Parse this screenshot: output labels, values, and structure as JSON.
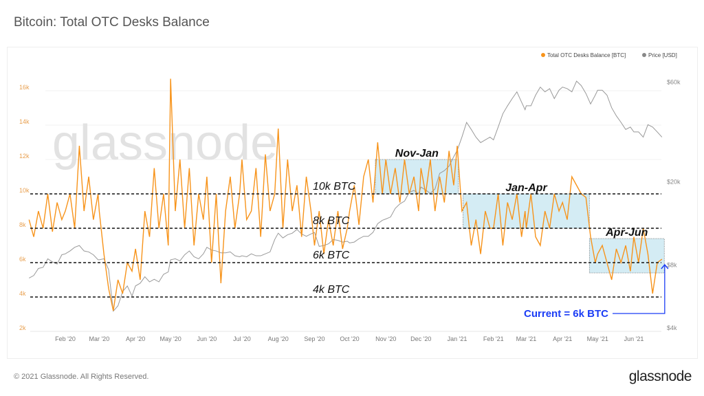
{
  "title": "Bitcoin: Total OTC Desks Balance",
  "footer": "© 2021 Glassnode. All Rights Reserved.",
  "logo": "glassnode",
  "watermark": "glassnode",
  "colors": {
    "btc": "#f7931a",
    "price": "#999999",
    "box": "#d4ecf4",
    "annotation": "#1a3cf5"
  },
  "chart_data": {
    "type": "line",
    "title": "Bitcoin: Total OTC Desks Balance",
    "legend_position": "top-right",
    "grid": true,
    "y_left": {
      "ticks": [
        "2k",
        "4k",
        "6k",
        "8k",
        "10k",
        "12k",
        "14k",
        "16k"
      ],
      "tick_values": [
        2000,
        4000,
        6000,
        8000,
        10000,
        12000,
        14000,
        16000
      ],
      "range": [
        2000,
        18000
      ]
    },
    "y_right": {
      "scale": "log",
      "ticks": [
        "$4k",
        "$8k",
        "$20k",
        "$60k"
      ],
      "tick_values": [
        4000,
        8000,
        20000,
        60000
      ]
    },
    "x_ticks": [
      [
        "2020-02-01",
        "Feb '20"
      ],
      [
        "2020-03-01",
        "Mar '20"
      ],
      [
        "2020-04-01",
        "Apr '20"
      ],
      [
        "2020-05-01",
        "May '20"
      ],
      [
        "2020-06-01",
        "Jun '20"
      ],
      [
        "2020-07-01",
        "Jul '20"
      ],
      [
        "2020-08-01",
        "Aug '20"
      ],
      [
        "2020-09-01",
        "Sep '20"
      ],
      [
        "2020-10-01",
        "Oct '20"
      ],
      [
        "2020-11-01",
        "Nov '20"
      ],
      [
        "2020-12-01",
        "Dec '20"
      ],
      [
        "2021-01-01",
        "Jan '21"
      ],
      [
        "2021-02-01",
        "Feb '21"
      ],
      [
        "2021-03-01",
        "Mar '21"
      ],
      [
        "2021-04-01",
        "Apr '21"
      ],
      [
        "2021-05-01",
        "May '21"
      ],
      [
        "2021-06-01",
        "Jun '21"
      ]
    ],
    "series": [
      {
        "name": "Total OTC Desks Balance [BTC]",
        "axis": "left",
        "color": "#f7931a",
        "values": [
          8500,
          7500,
          9000,
          8000,
          10000,
          7800,
          9500,
          8500,
          9000,
          10000,
          8000,
          12800,
          9000,
          11000,
          8500,
          10000,
          9000,
          6500,
          4500,
          3200,
          5000,
          4200,
          6000,
          5500,
          6800,
          5000,
          9000,
          7500,
          11500,
          8000,
          10000,
          7000,
          16700,
          9000,
          12000,
          8000,
          11500,
          7000,
          10000,
          8500,
          11000,
          6000,
          10000,
          4800,
          9000,
          11000,
          8000,
          10000,
          12000,
          8500,
          9000,
          11500,
          7500,
          12300,
          9000,
          10000,
          13800,
          8000,
          12000,
          9000,
          10500,
          7500,
          11000,
          9000,
          7000,
          9000,
          6500,
          8500,
          7000,
          9000,
          6800,
          8000,
          9000,
          10500,
          8200,
          11000,
          12000,
          9500,
          13000,
          10000,
          12000,
          10000,
          11500,
          9500,
          12000,
          10000,
          11000,
          9000,
          11500,
          10000,
          12000,
          9000,
          11000,
          9500,
          12500,
          10500,
          12800,
          9000,
          9500,
          7000,
          8500,
          6500,
          9000,
          8000,
          8000,
          10000,
          7000,
          9500,
          8500,
          10000,
          7500,
          9000,
          8000,
          10000,
          7500,
          7000,
          9000,
          8000,
          10000,
          9000,
          9500,
          8500,
          11000,
          10500,
          10000,
          9800,
          7500,
          6000,
          6500,
          7000,
          6000,
          5000,
          6800,
          6000,
          7000,
          5500,
          7500,
          6000,
          8000,
          6500,
          4200,
          6000,
          6200
        ]
      },
      {
        "name": "Price [USD]",
        "axis": "right",
        "color": "#999999",
        "values": [
          7200,
          7400,
          8000,
          8100,
          8900,
          8600,
          8400,
          9300,
          9400,
          9700,
          10100,
          10300,
          9700,
          9600,
          9300,
          8800,
          8800,
          8900,
          7900,
          5000,
          5300,
          6200,
          6600,
          5900,
          6600,
          6800,
          7300,
          6900,
          7100,
          6900,
          7500,
          7700,
          8800,
          8900,
          8700,
          9300,
          9700,
          9100,
          8900,
          9400,
          10100,
          9800,
          9700,
          9500,
          9500,
          9600,
          9200,
          9100,
          9200,
          9100,
          9400,
          9200,
          9200,
          9400,
          9600,
          11000,
          11800,
          11200,
          11600,
          11800,
          12300,
          11700,
          11400,
          11700,
          11900,
          10200,
          10300,
          10500,
          11000,
          10900,
          10700,
          10800,
          10600,
          10700,
          11100,
          11400,
          11400,
          11900,
          13100,
          13600,
          13800,
          14100,
          15500,
          16300,
          16800,
          18500,
          18900,
          18200,
          19600,
          19000,
          18300,
          19200,
          22800,
          23500,
          24700,
          27400,
          29400,
          34000,
          40000,
          37000,
          34000,
          32000,
          33000,
          34000,
          33000,
          38000,
          44000,
          48000,
          52000,
          56000,
          50000,
          46000,
          48000,
          48000,
          54000,
          59000,
          56000,
          58000,
          52000,
          57000,
          59000,
          58000,
          56000,
          63000,
          60000,
          55000,
          49000,
          54000,
          57000,
          57000,
          54000,
          47000,
          43000,
          40000,
          37000,
          38000,
          36000,
          36000,
          34000,
          39000,
          38000,
          36000,
          34000
        ]
      }
    ],
    "x": [
      "2020-01-01",
      "2020-01-05",
      "2020-01-09",
      "2020-01-13",
      "2020-01-17",
      "2020-01-21",
      "2020-01-25",
      "2020-01-29",
      "2020-02-01",
      "2020-02-05",
      "2020-02-09",
      "2020-02-13",
      "2020-02-17",
      "2020-02-21",
      "2020-02-25",
      "2020-02-29",
      "2020-03-01",
      "2020-03-05",
      "2020-03-09",
      "2020-03-13",
      "2020-03-17",
      "2020-03-21",
      "2020-03-25",
      "2020-03-29",
      "2020-04-01",
      "2020-04-05",
      "2020-04-09",
      "2020-04-13",
      "2020-04-17",
      "2020-04-21",
      "2020-04-25",
      "2020-04-29",
      "2020-05-01",
      "2020-05-05",
      "2020-05-09",
      "2020-05-13",
      "2020-05-17",
      "2020-05-21",
      "2020-05-25",
      "2020-05-29",
      "2020-06-01",
      "2020-06-05",
      "2020-06-09",
      "2020-06-13",
      "2020-06-17",
      "2020-06-21",
      "2020-06-25",
      "2020-06-29",
      "2020-07-01",
      "2020-07-05",
      "2020-07-09",
      "2020-07-13",
      "2020-07-17",
      "2020-07-21",
      "2020-07-25",
      "2020-07-29",
      "2020-08-01",
      "2020-08-05",
      "2020-08-09",
      "2020-08-13",
      "2020-08-17",
      "2020-08-21",
      "2020-08-25",
      "2020-08-29",
      "2020-09-01",
      "2020-09-05",
      "2020-09-09",
      "2020-09-13",
      "2020-09-17",
      "2020-09-21",
      "2020-09-25",
      "2020-09-29",
      "2020-10-01",
      "2020-10-05",
      "2020-10-09",
      "2020-10-13",
      "2020-10-17",
      "2020-10-21",
      "2020-10-25",
      "2020-10-29",
      "2020-11-01",
      "2020-11-05",
      "2020-11-09",
      "2020-11-13",
      "2020-11-17",
      "2020-11-21",
      "2020-11-25",
      "2020-11-29",
      "2020-12-01",
      "2020-12-05",
      "2020-12-09",
      "2020-12-13",
      "2020-12-17",
      "2020-12-21",
      "2020-12-25",
      "2020-12-29",
      "2021-01-01",
      "2021-01-05",
      "2021-01-09",
      "2021-01-13",
      "2021-01-17",
      "2021-01-21",
      "2021-01-25",
      "2021-01-29",
      "2021-02-01",
      "2021-02-05",
      "2021-02-09",
      "2021-02-13",
      "2021-02-17",
      "2021-02-21",
      "2021-02-25",
      "2021-02-28",
      "2021-03-01",
      "2021-03-05",
      "2021-03-09",
      "2021-03-13",
      "2021-03-17",
      "2021-03-21",
      "2021-03-25",
      "2021-03-29",
      "2021-04-01",
      "2021-04-05",
      "2021-04-09",
      "2021-04-13",
      "2021-04-17",
      "2021-04-21",
      "2021-04-25",
      "2021-04-29",
      "2021-05-01",
      "2021-05-05",
      "2021-05-09",
      "2021-05-13",
      "2021-05-17",
      "2021-05-21",
      "2021-05-25",
      "2021-05-29",
      "2021-06-01",
      "2021-06-05",
      "2021-06-09",
      "2021-06-13",
      "2021-06-17",
      "2021-06-21",
      "2021-06-25"
    ],
    "reference_lines": [
      {
        "value": 10000,
        "label": "10k BTC"
      },
      {
        "value": 8000,
        "label": "8k BTC"
      },
      {
        "value": 6000,
        "label": "6k BTC"
      },
      {
        "value": 4000,
        "label": "4k BTC"
      }
    ],
    "ranges": [
      {
        "label": "Nov-Jan",
        "start": "2020-10-23",
        "end": "2021-01-02",
        "low": 10000,
        "high": 12000
      },
      {
        "label": "Jan-Apr",
        "start": "2021-01-06",
        "end": "2021-04-24",
        "low": 8000,
        "high": 10000
      },
      {
        "label": "Apr-Jun",
        "start": "2021-04-24",
        "end": "2021-06-27",
        "low": 5400,
        "high": 7400
      }
    ],
    "annotation": {
      "label": "Current = 6k BTC",
      "target_date": "2021-06-25",
      "target_value": 6000
    }
  }
}
